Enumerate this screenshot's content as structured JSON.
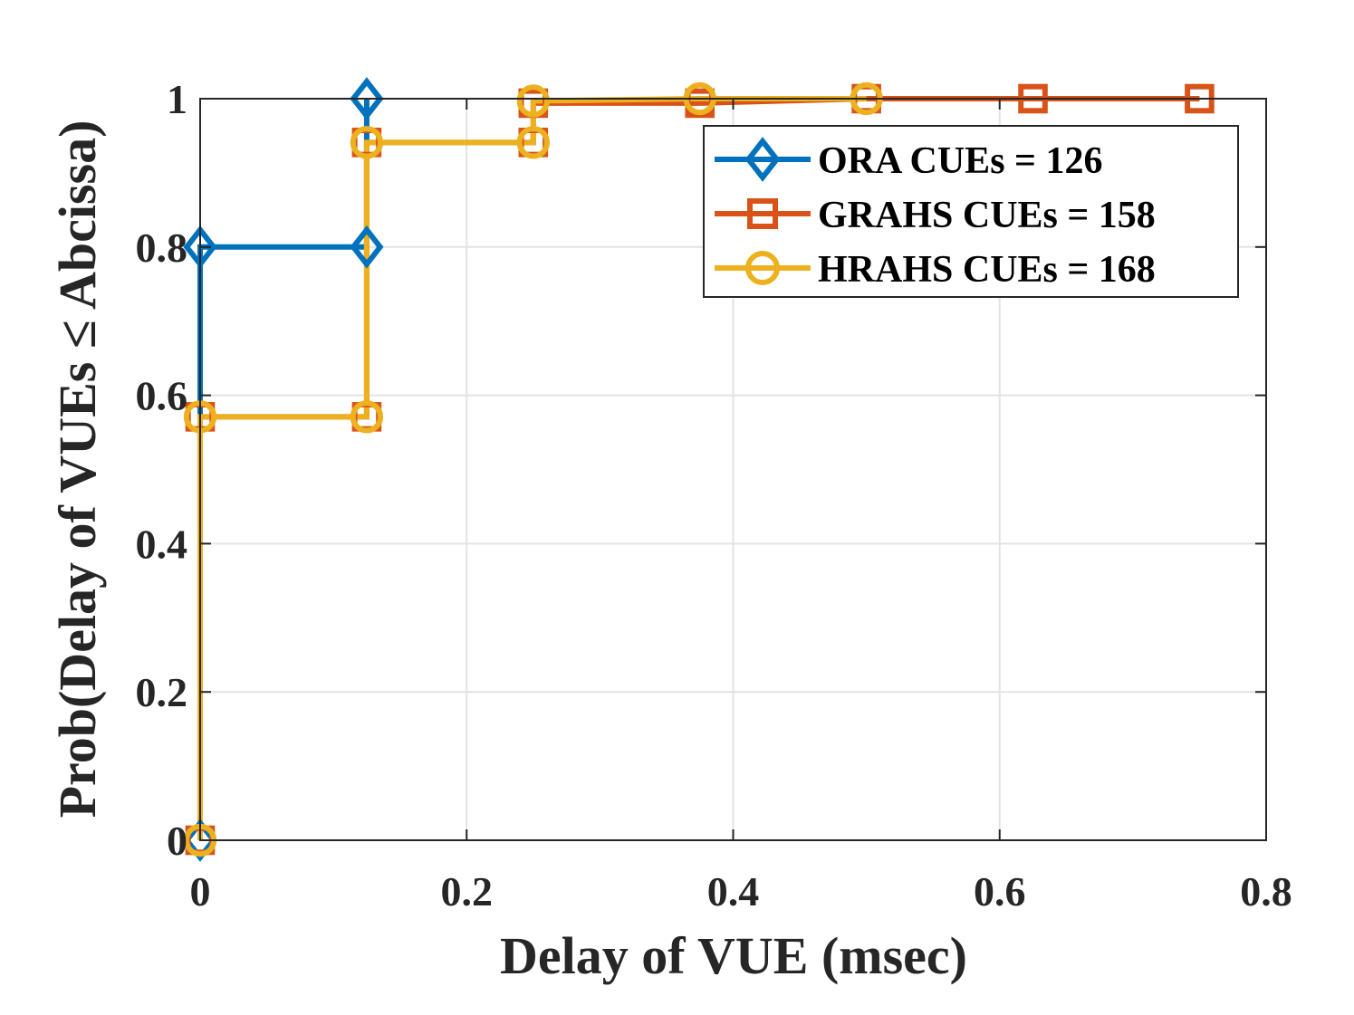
{
  "chart_data": {
    "type": "line",
    "title": "",
    "xlabel": "Delay of VUE (msec)",
    "ylabel": "Prob(Delay of VUEs ≤ Abcissa)",
    "xlim": [
      0,
      0.8
    ],
    "ylim": [
      0,
      1
    ],
    "xticks": [
      0,
      0.2,
      0.4,
      0.6,
      0.8
    ],
    "xtick_labels": [
      "0",
      "0.2",
      "0.4",
      "0.6",
      "0.8"
    ],
    "yticks": [
      0,
      0.2,
      0.4,
      0.6,
      0.8,
      1
    ],
    "ytick_labels": [
      "0",
      "0.2",
      "0.4",
      "0.6",
      "0.8",
      "1"
    ],
    "grid": true,
    "legend_position": "top-right",
    "step": true,
    "series": [
      {
        "name": "ORA CUEs = 126",
        "color": "#0072BD",
        "marker": "diamond",
        "x": [
          0,
          0,
          0.125,
          0.125
        ],
        "y": [
          0,
          0.8,
          0.8,
          1.0
        ]
      },
      {
        "name": "GRAHS CUEs = 158",
        "color": "#D95319",
        "marker": "square",
        "x": [
          0,
          0,
          0.125,
          0.125,
          0.25,
          0.25,
          0.375,
          0.5,
          0.625,
          0.75
        ],
        "y": [
          0,
          0.571,
          0.571,
          0.941,
          0.941,
          0.994,
          0.994,
          1.0,
          1.0,
          1.0
        ]
      },
      {
        "name": "HRAHS CUEs = 168",
        "color": "#EDB120",
        "marker": "circle",
        "x": [
          0,
          0,
          0.125,
          0.125,
          0.25,
          0.25,
          0.375,
          0.5
        ],
        "y": [
          0,
          0.571,
          0.571,
          0.941,
          0.941,
          0.997,
          1.0,
          1.0
        ]
      }
    ]
  }
}
